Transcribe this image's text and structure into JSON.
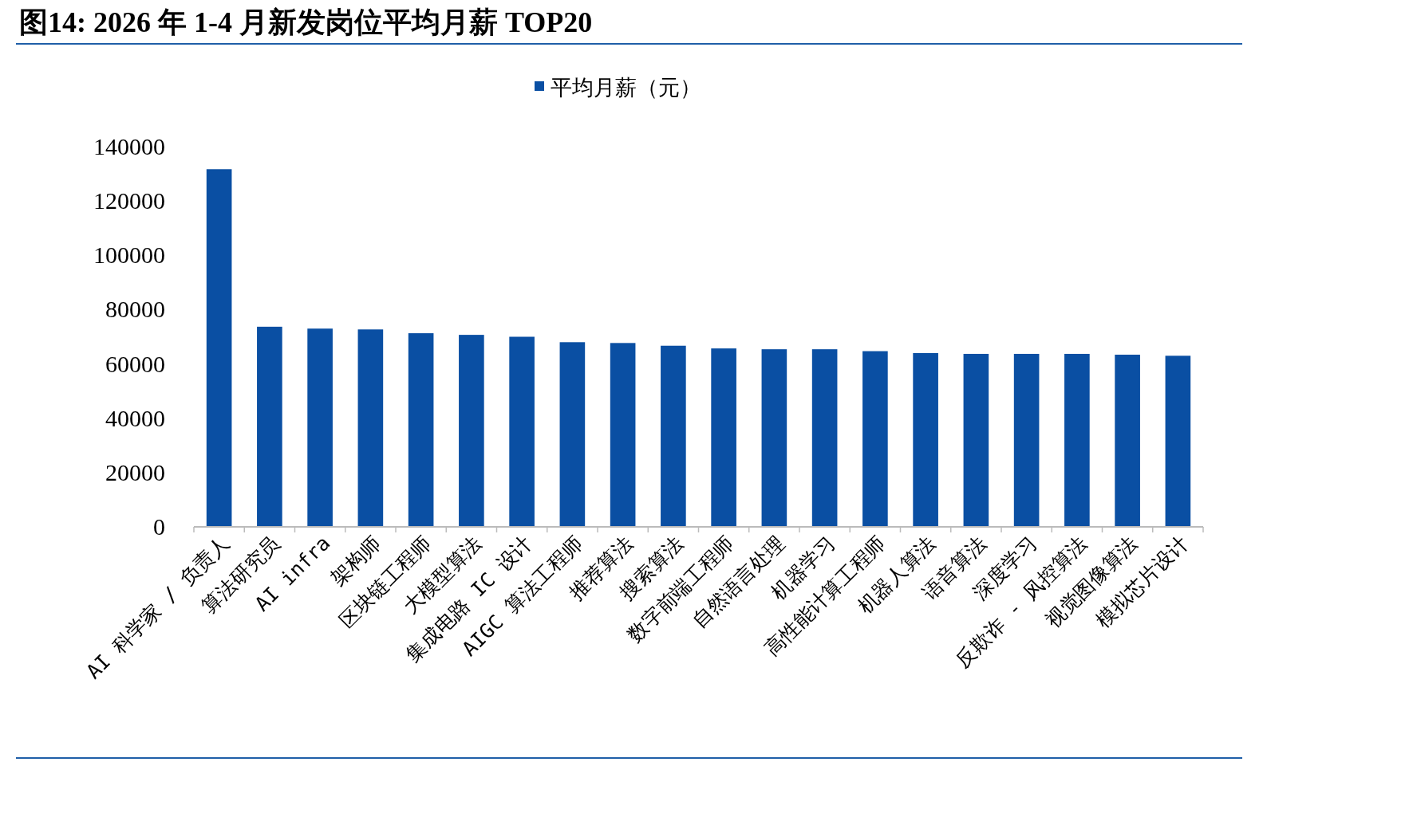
{
  "chart_data": {
    "type": "bar",
    "title": "图14: 2026 年 1-4 月新发岗位平均月薪 TOP20",
    "categories": [
      "AI 科学家 / 负责人",
      "算法研究员",
      "AI infra",
      "架构师",
      "区块链工程师",
      "大模型算法",
      "集成电路 IC 设计",
      "AIGC 算法工程师",
      "推荐算法",
      "搜索算法",
      "数字前端工程师",
      "自然语言处理",
      "机器学习",
      "高性能计算工程师",
      "机器人算法",
      "语音算法",
      "深度学习",
      "反欺诈 - 风控算法",
      "视觉图像算法",
      "模拟芯片设计"
    ],
    "series": [
      {
        "name": "平均月薪（元）",
        "color": "#0a4fa3",
        "values": [
          131700,
          73700,
          73000,
          72700,
          71300,
          70700,
          70000,
          68000,
          67700,
          66700,
          65700,
          65400,
          65400,
          64700,
          64000,
          63700,
          63700,
          63700,
          63400,
          63000
        ]
      }
    ],
    "ylim": [
      0,
      140000
    ],
    "yticks": [
      0,
      20000,
      40000,
      60000,
      80000,
      100000,
      120000,
      140000
    ],
    "legend": "top",
    "grid": false
  }
}
